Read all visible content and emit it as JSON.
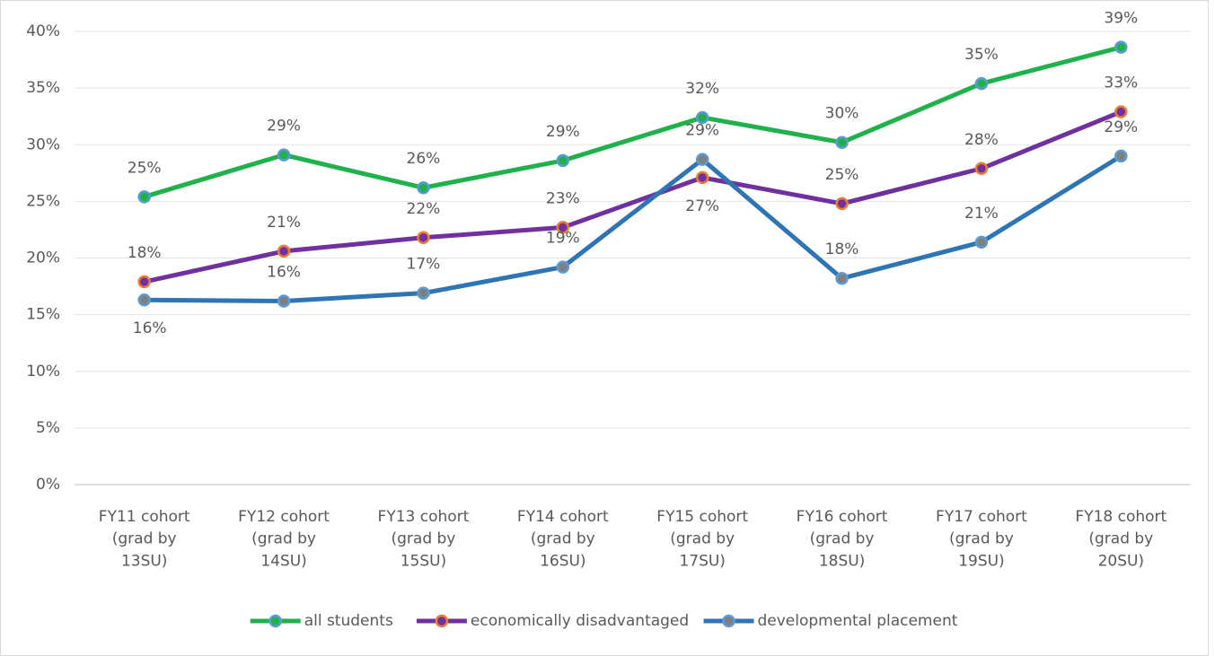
{
  "chart_data": {
    "type": "line",
    "categories": [
      "FY11 cohort\n(grad by\n13SU)",
      "FY12 cohort\n(grad by\n14SU)",
      "FY13 cohort\n(grad by\n15SU)",
      "FY14 cohort\n(grad by\n16SU)",
      "FY15 cohort\n(grad by\n17SU)",
      "FY16 cohort\n(grad by\n18SU)",
      "FY17 cohort\n(grad by\n19SU)",
      "FY18 cohort\n(grad by\n20SU)"
    ],
    "series": [
      {
        "name": "all students",
        "color": "#1fb14a",
        "marker_fill": "#1fb14a",
        "marker_edge": "#5b9bd5",
        "values": [
          25.4,
          29.1,
          26.2,
          28.6,
          32.4,
          30.2,
          35.4,
          38.6
        ],
        "value_labels": [
          "25%",
          "29%",
          "26%",
          "29%",
          "32%",
          "30%",
          "35%",
          "39%"
        ]
      },
      {
        "name": "economically disadvantaged",
        "color": "#7030a0",
        "marker_fill": "#7030a0",
        "marker_edge": "#ed7d31",
        "values": [
          17.9,
          20.6,
          21.8,
          22.7,
          27.1,
          24.8,
          27.9,
          32.9
        ],
        "value_labels": [
          "18%",
          "21%",
          "22%",
          "23%",
          "27%",
          "25%",
          "28%",
          "33%"
        ]
      },
      {
        "name": "developmental placement",
        "color": "#2e75b6",
        "marker_fill": "#7f7f7f",
        "marker_edge": "#5b9bd5",
        "values": [
          16.3,
          16.2,
          16.9,
          19.2,
          28.7,
          18.2,
          21.4,
          29.0
        ],
        "value_labels": [
          "16%",
          "16%",
          "17%",
          "19%",
          "29%",
          "18%",
          "21%",
          "29%"
        ]
      }
    ],
    "ylim": [
      0,
      40
    ],
    "yticks": [
      {
        "value": 0,
        "label": "0%"
      },
      {
        "value": 5,
        "label": "5%"
      },
      {
        "value": 10,
        "label": "10%"
      },
      {
        "value": 15,
        "label": "15%"
      },
      {
        "value": 20,
        "label": "20%"
      },
      {
        "value": 25,
        "label": "25%"
      },
      {
        "value": 30,
        "label": "30%"
      },
      {
        "value": 35,
        "label": "35%"
      },
      {
        "value": 40,
        "label": "40%"
      }
    ],
    "grid": true,
    "legend": "bottom"
  }
}
